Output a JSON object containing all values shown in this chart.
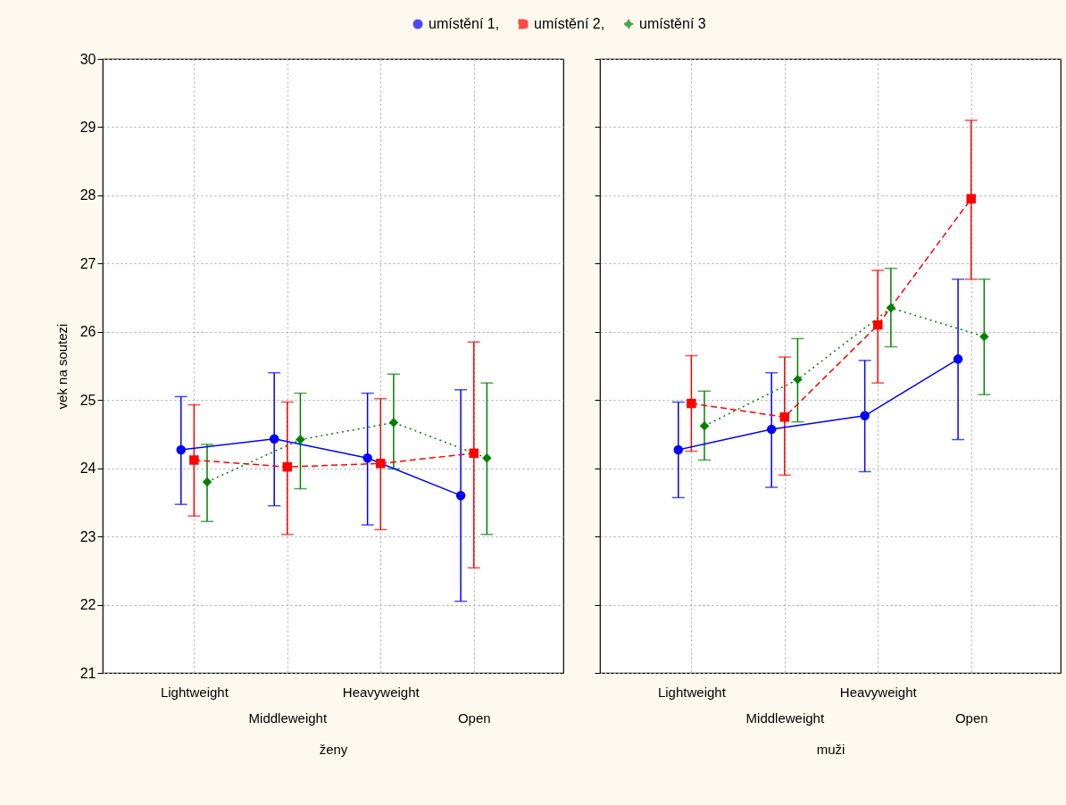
{
  "chart_data": [
    {
      "type": "line",
      "xlabel": "ženy",
      "ylabel": "vek na soutezi",
      "categories": [
        "Lightweight",
        "Middleweight",
        "Heavyweight",
        "Open"
      ],
      "ylim": [
        21,
        30
      ],
      "yticks": [
        21,
        22,
        23,
        24,
        25,
        26,
        27,
        28,
        29,
        30
      ],
      "grid": true,
      "legend": "top",
      "series": [
        {
          "name": "umístění 1,",
          "color": "#0000ff",
          "marker": "circle",
          "line_style": "solid",
          "values": [
            24.27,
            24.43,
            24.15,
            23.6
          ],
          "errors": [
            [
              23.47,
              25.05
            ],
            [
              23.45,
              25.4
            ],
            [
              23.17,
              25.1
            ],
            [
              22.05,
              25.15
            ]
          ]
        },
        {
          "name": "umístění 2,",
          "color": "#ff0000",
          "marker": "square",
          "line_style": "dashed",
          "values": [
            24.12,
            24.02,
            24.07,
            24.22
          ],
          "errors": [
            [
              23.3,
              24.93
            ],
            [
              23.03,
              24.97
            ],
            [
              23.1,
              25.02
            ],
            [
              22.54,
              25.85
            ]
          ]
        },
        {
          "name": "umístění 3",
          "color": "#008000",
          "marker": "diamond",
          "line_style": "dotted",
          "values": [
            23.8,
            24.42,
            24.67,
            24.15
          ],
          "errors": [
            [
              23.22,
              24.35
            ],
            [
              23.7,
              25.1
            ],
            [
              23.99,
              25.38
            ],
            [
              23.03,
              25.25
            ]
          ]
        }
      ]
    },
    {
      "type": "line",
      "xlabel": "muži",
      "categories": [
        "Lightweight",
        "Middleweight",
        "Heavyweight",
        "Open"
      ],
      "ylim": [
        21,
        30
      ],
      "yticks": [
        21,
        22,
        23,
        24,
        25,
        26,
        27,
        28,
        29,
        30
      ],
      "grid": true,
      "legend": "top",
      "tick_labels": "x",
      "series": [
        {
          "name": "umístění 1,",
          "color": "#0000ff",
          "marker": "circle",
          "line_style": "solid",
          "values": [
            24.27,
            24.57,
            24.77,
            25.6
          ],
          "errors": [
            [
              23.57,
              24.97
            ],
            [
              23.72,
              25.4
            ],
            [
              23.95,
              25.58
            ],
            [
              24.42,
              26.77
            ]
          ]
        },
        {
          "name": "umístění 2,",
          "color": "#ff0000",
          "marker": "square",
          "line_style": "dashed",
          "values": [
            24.95,
            24.75,
            26.1,
            27.95
          ],
          "errors": [
            [
              24.25,
              25.65
            ],
            [
              23.9,
              25.63
            ],
            [
              25.25,
              26.9
            ],
            [
              26.77,
              29.1
            ]
          ]
        },
        {
          "name": "umístění 3",
          "color": "#008000",
          "marker": "diamond",
          "line_style": "dotted",
          "values": [
            24.62,
            25.3,
            26.35,
            25.93
          ],
          "errors": [
            [
              24.12,
              25.13
            ],
            [
              24.68,
              25.9
            ],
            [
              25.78,
              26.93
            ],
            [
              25.08,
              26.77
            ]
          ]
        }
      ]
    }
  ]
}
